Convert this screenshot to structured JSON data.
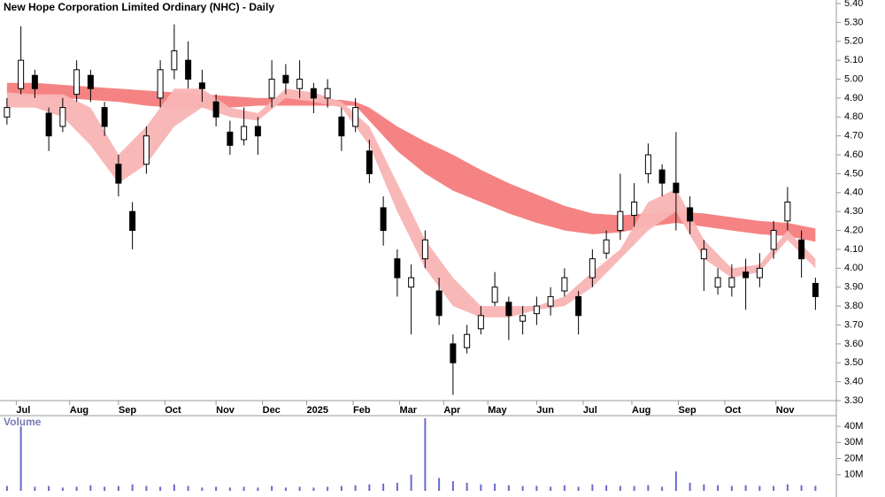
{
  "chart_data": [
    {
      "type": "candlestick",
      "title": "New Hope Corporation Limited Ordinary (NHC) - Daily",
      "x": [
        0,
        6,
        12,
        18,
        24,
        30,
        36,
        42,
        48,
        54,
        60,
        66,
        72,
        78,
        84,
        90,
        96,
        102,
        108,
        114,
        120,
        126,
        132,
        138,
        144,
        150,
        156,
        162,
        168,
        174,
        180,
        186,
        192,
        198,
        204,
        210,
        216,
        222,
        228,
        234,
        240,
        246,
        252,
        258,
        264,
        270,
        276,
        282,
        288,
        294,
        300,
        306,
        312,
        318,
        324,
        330,
        336,
        342,
        348
      ],
      "open": [
        4.8,
        4.95,
        5.02,
        4.82,
        4.75,
        4.92,
        5.02,
        4.85,
        4.55,
        4.3,
        4.55,
        4.9,
        5.05,
        5.1,
        4.98,
        4.88,
        4.72,
        4.68,
        4.75,
        4.9,
        5.02,
        4.95,
        4.95,
        4.9,
        4.8,
        4.75,
        4.62,
        4.32,
        4.05,
        3.9,
        4.05,
        3.88,
        3.6,
        3.58,
        3.68,
        3.82,
        3.82,
        3.72,
        3.76,
        3.8,
        3.88,
        3.85,
        3.95,
        4.08,
        4.2,
        4.28,
        4.5,
        4.52,
        4.45,
        4.32,
        4.05,
        3.9,
        3.9,
        3.98,
        3.95,
        4.1,
        4.25,
        4.15,
        3.92
      ],
      "high": [
        4.9,
        5.28,
        5.05,
        4.85,
        4.9,
        5.1,
        5.05,
        4.88,
        4.6,
        4.35,
        4.75,
        5.1,
        5.29,
        5.2,
        5.05,
        4.92,
        4.78,
        4.85,
        4.8,
        5.1,
        5.08,
        5.1,
        4.98,
        5.0,
        4.85,
        4.9,
        4.68,
        4.38,
        4.1,
        4.02,
        4.2,
        3.95,
        3.65,
        3.7,
        3.8,
        3.98,
        3.85,
        3.8,
        3.85,
        3.9,
        4.0,
        3.88,
        4.1,
        4.2,
        4.5,
        4.45,
        4.66,
        4.55,
        4.72,
        4.38,
        4.15,
        4.0,
        4.02,
        4.05,
        4.08,
        4.25,
        4.43,
        4.2,
        3.95
      ],
      "low": [
        4.76,
        4.92,
        4.9,
        4.62,
        4.72,
        4.88,
        4.88,
        4.7,
        4.38,
        4.1,
        4.5,
        4.85,
        5.0,
        4.95,
        4.88,
        4.75,
        4.6,
        4.65,
        4.6,
        4.85,
        4.92,
        4.9,
        4.82,
        4.85,
        4.62,
        4.72,
        4.45,
        4.12,
        3.85,
        3.65,
        4.0,
        3.7,
        3.33,
        3.55,
        3.65,
        3.8,
        3.62,
        3.65,
        3.7,
        3.75,
        3.85,
        3.65,
        3.9,
        4.05,
        4.15,
        4.22,
        4.45,
        4.38,
        4.2,
        4.18,
        3.88,
        3.86,
        3.85,
        3.78,
        3.9,
        4.05,
        4.2,
        3.95,
        3.78
      ],
      "close": [
        4.85,
        5.1,
        4.95,
        4.7,
        4.85,
        5.05,
        4.95,
        4.75,
        4.45,
        4.2,
        4.7,
        5.05,
        5.15,
        5.0,
        4.95,
        4.8,
        4.65,
        4.75,
        4.7,
        5.0,
        4.98,
        5.0,
        4.9,
        4.95,
        4.7,
        4.85,
        4.5,
        4.2,
        3.95,
        3.95,
        4.15,
        3.75,
        3.5,
        3.65,
        3.75,
        3.9,
        3.75,
        3.75,
        3.8,
        3.85,
        3.95,
        3.75,
        4.05,
        4.15,
        4.3,
        4.35,
        4.6,
        4.45,
        4.4,
        4.25,
        4.1,
        3.95,
        3.95,
        3.95,
        4.0,
        4.2,
        4.35,
        4.05,
        3.85
      ],
      "color_up": "#ffffff",
      "color_down": "#000000",
      "bands": [
        {
          "color": "#f47c7c",
          "x": [
            0,
            12,
            24,
            36,
            48,
            60,
            72,
            84,
            96,
            108,
            120,
            132,
            144,
            150,
            156,
            168,
            180,
            192,
            204,
            216,
            228,
            240,
            252,
            264,
            276,
            288,
            300,
            312,
            324,
            336,
            348
          ],
          "upper": [
            4.98,
            4.98,
            4.97,
            4.96,
            4.95,
            4.94,
            4.93,
            4.92,
            4.91,
            4.9,
            4.9,
            4.89,
            4.89,
            4.88,
            4.85,
            4.75,
            4.67,
            4.6,
            4.52,
            4.45,
            4.39,
            4.33,
            4.29,
            4.28,
            4.29,
            4.3,
            4.29,
            4.27,
            4.25,
            4.24,
            4.21
          ],
          "lower": [
            4.92,
            4.91,
            4.9,
            4.89,
            4.88,
            4.86,
            4.85,
            4.85,
            4.85,
            4.86,
            4.86,
            4.86,
            4.86,
            4.86,
            4.78,
            4.62,
            4.5,
            4.41,
            4.35,
            4.29,
            4.24,
            4.2,
            4.18,
            4.19,
            4.22,
            4.24,
            4.22,
            4.2,
            4.18,
            4.17,
            4.14
          ]
        },
        {
          "color": "#f9b4b4",
          "x": [
            0,
            12,
            24,
            36,
            48,
            60,
            72,
            84,
            96,
            108,
            120,
            132,
            144,
            156,
            168,
            180,
            192,
            204,
            216,
            228,
            240,
            252,
            264,
            276,
            288,
            300,
            312,
            324,
            336,
            348
          ],
          "upper": [
            4.93,
            4.92,
            4.92,
            4.85,
            4.6,
            4.75,
            4.95,
            4.95,
            4.85,
            4.82,
            4.95,
            4.93,
            4.88,
            4.75,
            4.45,
            4.15,
            3.95,
            3.8,
            3.8,
            3.8,
            3.85,
            3.98,
            4.1,
            4.35,
            4.42,
            4.15,
            4.0,
            4.02,
            4.2,
            4.05
          ],
          "lower": [
            4.85,
            4.85,
            4.8,
            4.65,
            4.45,
            4.55,
            4.75,
            4.85,
            4.8,
            4.78,
            4.9,
            4.88,
            4.85,
            4.65,
            4.3,
            4.0,
            3.8,
            3.74,
            3.74,
            3.78,
            3.8,
            3.9,
            4.05,
            4.2,
            4.3,
            4.05,
            3.95,
            3.98,
            4.15,
            4.0
          ]
        }
      ],
      "xlim": [
        -3,
        357
      ],
      "xticks": [
        {
          "value": 4,
          "label": "Jul"
        },
        {
          "value": 27,
          "label": "Aug"
        },
        {
          "value": 48,
          "label": "Sep"
        },
        {
          "value": 68,
          "label": "Oct"
        },
        {
          "value": 90,
          "label": "Nov"
        },
        {
          "value": 110,
          "label": "Dec"
        },
        {
          "value": 129,
          "label": "2025"
        },
        {
          "value": 149,
          "label": "Feb"
        },
        {
          "value": 169,
          "label": "Mar"
        },
        {
          "value": 188,
          "label": "Apr"
        },
        {
          "value": 207,
          "label": "May"
        },
        {
          "value": 228,
          "label": "Jun"
        },
        {
          "value": 248,
          "label": "Jul"
        },
        {
          "value": 269,
          "label": "Aug"
        },
        {
          "value": 289,
          "label": "Sep"
        },
        {
          "value": 309,
          "label": "Oct"
        },
        {
          "value": 331,
          "label": "Nov"
        }
      ],
      "ylim": [
        3.3,
        5.4
      ],
      "yticks": [
        {
          "value": 3.3,
          "label": "3.30"
        },
        {
          "value": 3.4,
          "label": "3.40"
        },
        {
          "value": 3.5,
          "label": "3.50"
        },
        {
          "value": 3.6,
          "label": "3.60"
        },
        {
          "value": 3.7,
          "label": "3.70"
        },
        {
          "value": 3.8,
          "label": "3.80"
        },
        {
          "value": 3.9,
          "label": "3.90"
        },
        {
          "value": 4.0,
          "label": "4.00"
        },
        {
          "value": 4.1,
          "label": "4.10"
        },
        {
          "value": 4.2,
          "label": "4.20"
        },
        {
          "value": 4.3,
          "label": "4.30"
        },
        {
          "value": 4.4,
          "label": "4.40"
        },
        {
          "value": 4.5,
          "label": "4.50"
        },
        {
          "value": 4.6,
          "label": "4.60"
        },
        {
          "value": 4.7,
          "label": "4.70"
        },
        {
          "value": 4.8,
          "label": "4.80"
        },
        {
          "value": 4.9,
          "label": "4.90"
        },
        {
          "value": 5.0,
          "label": "5.00"
        },
        {
          "value": 5.1,
          "label": "5.10"
        },
        {
          "value": 5.2,
          "label": "5.20"
        },
        {
          "value": 5.3,
          "label": "5.30"
        },
        {
          "value": 5.4,
          "label": "5.40"
        }
      ]
    },
    {
      "type": "bar",
      "title": "Volume",
      "x": [
        0,
        6,
        12,
        18,
        24,
        30,
        36,
        42,
        48,
        54,
        60,
        66,
        72,
        78,
        84,
        90,
        96,
        102,
        108,
        114,
        120,
        126,
        132,
        138,
        144,
        150,
        156,
        162,
        168,
        174,
        180,
        186,
        192,
        198,
        204,
        210,
        216,
        222,
        228,
        234,
        240,
        246,
        252,
        258,
        264,
        270,
        276,
        282,
        288,
        294,
        300,
        306,
        312,
        318,
        324,
        330,
        336,
        342,
        348
      ],
      "values": [
        3000000,
        40000000,
        2500000,
        3000000,
        2000000,
        2500000,
        3500000,
        2500000,
        3000000,
        4000000,
        3000000,
        2500000,
        4000000,
        3000000,
        2000000,
        2500000,
        2000000,
        2500000,
        2000000,
        3000000,
        2000000,
        2500000,
        2000000,
        2500000,
        3000000,
        3500000,
        4000000,
        4500000,
        5000000,
        10000000,
        45000000,
        8000000,
        6000000,
        5000000,
        4000000,
        4500000,
        3500000,
        3000000,
        3000000,
        2500000,
        3500000,
        2500000,
        4000000,
        3500000,
        3000000,
        3000000,
        3500000,
        2500000,
        12000000,
        5000000,
        4000000,
        3500000,
        3000000,
        3500000,
        3000000,
        3000000,
        4000000,
        3500000,
        3000000
      ],
      "color": "#6a6ad0",
      "xlim": [
        -3,
        357
      ],
      "ylim": [
        0,
        45000000
      ],
      "yticks": [
        {
          "value": 10000000,
          "label": "10M"
        },
        {
          "value": 20000000,
          "label": "20M"
        },
        {
          "value": 30000000,
          "label": "30M"
        },
        {
          "value": 40000000,
          "label": "40M"
        }
      ]
    }
  ]
}
